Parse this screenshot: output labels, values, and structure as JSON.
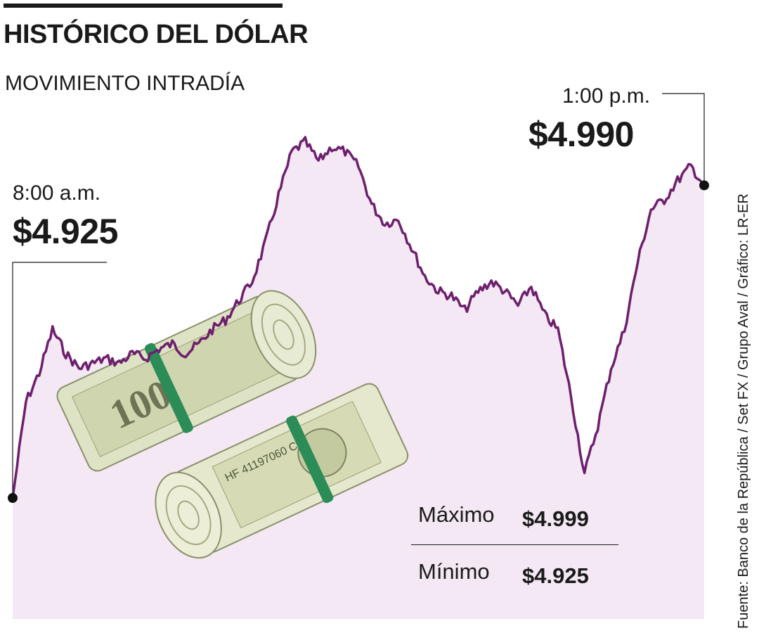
{
  "header": {
    "title": "HISTÓRICO DEL DÓLAR",
    "subtitle": "MOVIMIENTO INTRADÍA"
  },
  "annotations": {
    "start_time": "8:00 a.m.",
    "start_value": "$4.925",
    "end_time": "1:00 p.m.",
    "end_value": "$4.990"
  },
  "stats": {
    "max_label": "Máximo",
    "max_value": "$4.999",
    "min_label": "Mínimo",
    "min_value": "$4.925"
  },
  "source": "Fuente: Banco de la República / Set FX / Grupo Aval / Gráfico: LR-ER",
  "colors": {
    "line": "#6e1f6e",
    "area": "#f3e8f3",
    "text": "#1a1a1a"
  },
  "illustration": "rolled-dollar-bills",
  "chart_data": {
    "type": "area",
    "x_range": [
      "8:00 a.m.",
      "1:00 p.m."
    ],
    "y": [
      4925,
      4945,
      4951,
      4960,
      4955,
      4952,
      4953,
      4954,
      4953,
      4955,
      4954,
      4956,
      4957,
      4955,
      4957,
      4960,
      4962,
      4966,
      4970,
      4978,
      4988,
      4997,
      4999,
      4995,
      4998,
      4997,
      4994,
      4986,
      4982,
      4983,
      4977,
      4971,
      4968,
      4967,
      4964,
      4968,
      4970,
      4968,
      4965,
      4969,
      4963,
      4960,
      4946,
      4930,
      4940,
      4952,
      4960,
      4974,
      4985,
      4987,
      4991,
      4994,
      4990
    ]
  }
}
